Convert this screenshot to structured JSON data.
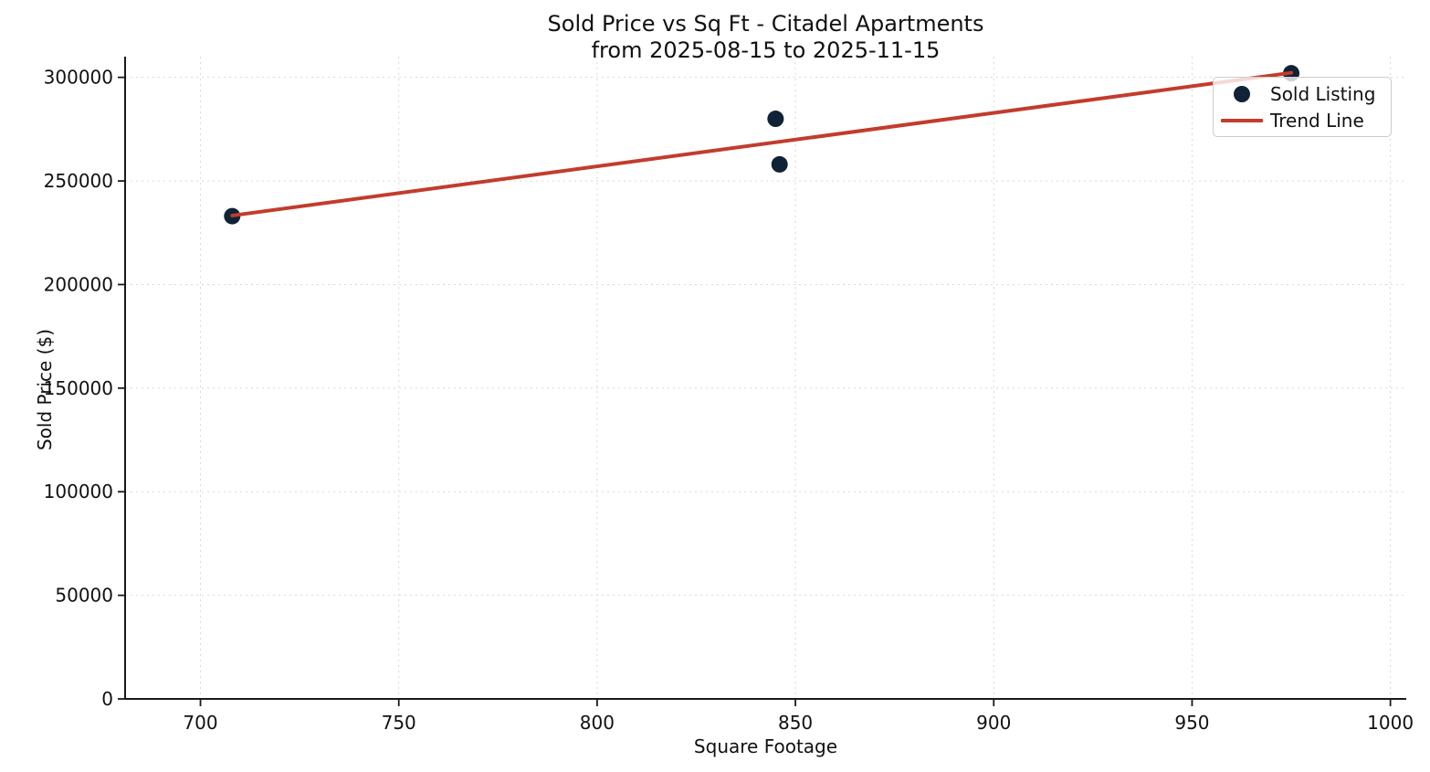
{
  "figure": {
    "background": "#ffffff"
  },
  "chart_data": {
    "type": "scatter",
    "title": "Sold Price vs Sq Ft - Citadel Apartments",
    "subtitle": "from 2025-08-15 to 2025-11-15",
    "xlabel": "Square Footage",
    "ylabel": "Sold Price ($)",
    "xlim": [
      681,
      1004
    ],
    "ylim": [
      0,
      310000
    ],
    "xticks": [
      700,
      750,
      800,
      850,
      900,
      950,
      1000
    ],
    "yticks": [
      0,
      50000,
      100000,
      150000,
      200000,
      250000,
      300000
    ],
    "grid": {
      "visible": true,
      "style": "dashed",
      "color": "#d8d8d8"
    },
    "axis_color": "#1a1a1a",
    "text_color": "#111111",
    "legend": {
      "position": "upper right",
      "border_color": "#cccccc",
      "background": "rgba(255,255,255,0.8)"
    },
    "series": [
      {
        "name": "Sold Listing",
        "type": "scatter",
        "color": "#0f2236",
        "points": [
          [
            708,
            233000
          ],
          [
            845,
            280000
          ],
          [
            846,
            258000
          ],
          [
            975,
            302000
          ]
        ]
      },
      {
        "name": "Trend Line",
        "type": "line",
        "color": "#c23c2c",
        "points": [
          [
            708,
            233300
          ],
          [
            975,
            302200
          ]
        ]
      }
    ]
  }
}
